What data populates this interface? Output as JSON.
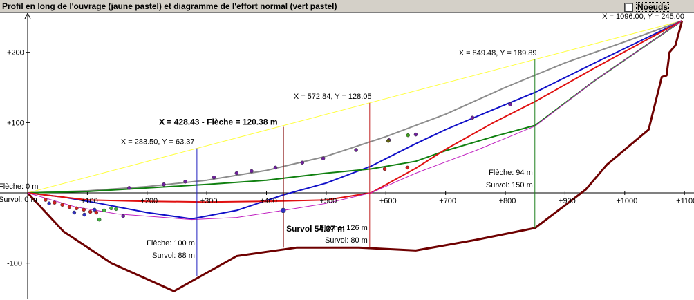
{
  "window": {
    "title": "Profil en long de l'ouvrage (jaune pastel) et diagramme de l'effort normal (vert pastel)",
    "noeuds_label": "Noeuds",
    "noeuds_checked": false
  },
  "chart_data": {
    "type": "line",
    "xlim": [
      -10,
      1100
    ],
    "ylim": [
      -140,
      245
    ],
    "x_ticks": [
      {
        "v": 100,
        "label": "+100"
      },
      {
        "v": 200,
        "label": "+200"
      },
      {
        "v": 300,
        "label": "+300"
      },
      {
        "v": 400,
        "label": "+400"
      },
      {
        "v": 500,
        "label": "+500"
      },
      {
        "v": 600,
        "label": "+600"
      },
      {
        "v": 700,
        "label": "+700"
      },
      {
        "v": 800,
        "label": "+800"
      },
      {
        "v": 900,
        "label": "+900"
      },
      {
        "v": 1000,
        "label": "+1000"
      },
      {
        "v": 1100,
        "label": "+1100"
      }
    ],
    "y_ticks": [
      {
        "v": 200,
        "label": "+200"
      },
      {
        "v": 100,
        "label": "+100"
      },
      {
        "v": -100,
        "label": "-100"
      }
    ],
    "axis_labels": {
      "fleche0": "Flèche: 0 m",
      "survol0": "Survol: 0 m"
    },
    "top_label": "X = 1096.00, Y = 245.00",
    "series": [
      {
        "key": "chord",
        "color": "#ffff40",
        "width": 1,
        "points": [
          [
            0,
            0
          ],
          [
            1096,
            245
          ]
        ]
      },
      {
        "key": "terrain",
        "color": "#6e0000",
        "width": 3,
        "points": [
          [
            0,
            0
          ],
          [
            60,
            -55
          ],
          [
            140,
            -100
          ],
          [
            245,
            -140
          ],
          [
            350,
            -90
          ],
          [
            450,
            -78
          ],
          [
            555,
            -78
          ],
          [
            650,
            -82
          ],
          [
            750,
            -67
          ],
          [
            850,
            -50
          ],
          [
            935,
            5
          ],
          [
            970,
            40
          ],
          [
            1040,
            90
          ],
          [
            1062,
            165
          ],
          [
            1070,
            167
          ],
          [
            1075,
            200
          ],
          [
            1085,
            210
          ],
          [
            1096,
            245
          ]
        ]
      },
      {
        "key": "grey",
        "color": "#8c8c8c",
        "width": 2,
        "points": [
          [
            0,
            0
          ],
          [
            100,
            3
          ],
          [
            200,
            9
          ],
          [
            300,
            18
          ],
          [
            400,
            32
          ],
          [
            500,
            52
          ],
          [
            600,
            80
          ],
          [
            700,
            112
          ],
          [
            800,
            150
          ],
          [
            900,
            185
          ],
          [
            1000,
            215
          ],
          [
            1096,
            245
          ]
        ]
      },
      {
        "key": "blue",
        "color": "#1010c8",
        "width": 2,
        "points": [
          [
            0,
            0
          ],
          [
            60,
            -6
          ],
          [
            120,
            -15
          ],
          [
            200,
            -28
          ],
          [
            275,
            -37
          ],
          [
            350,
            -25
          ],
          [
            428,
            -3
          ],
          [
            500,
            14
          ],
          [
            575,
            38
          ],
          [
            650,
            70
          ],
          [
            700,
            90
          ],
          [
            770,
            115
          ],
          [
            850,
            143
          ],
          [
            950,
            185
          ],
          [
            1096,
            245
          ]
        ]
      },
      {
        "key": "green",
        "color": "#108010",
        "width": 2,
        "points": [
          [
            0,
            0
          ],
          [
            100,
            2
          ],
          [
            200,
            7
          ],
          [
            300,
            12
          ],
          [
            400,
            18
          ],
          [
            500,
            28
          ],
          [
            575,
            34
          ],
          [
            650,
            45
          ],
          [
            700,
            60
          ],
          [
            780,
            80
          ],
          [
            850,
            96
          ],
          [
            950,
            160
          ],
          [
            1096,
            245
          ]
        ]
      },
      {
        "key": "red",
        "color": "#e01010",
        "width": 2,
        "points": [
          [
            0,
            0
          ],
          [
            100,
            -10
          ],
          [
            200,
            -12
          ],
          [
            300,
            -13
          ],
          [
            400,
            -12
          ],
          [
            500,
            -10
          ],
          [
            575,
            0
          ],
          [
            650,
            35
          ],
          [
            700,
            62
          ],
          [
            780,
            100
          ],
          [
            850,
            130
          ],
          [
            950,
            178
          ],
          [
            1096,
            245
          ]
        ]
      },
      {
        "key": "magenta",
        "color": "#c020c0",
        "width": 1,
        "points": [
          [
            0,
            0
          ],
          [
            80,
            -20
          ],
          [
            150,
            -30
          ],
          [
            275,
            -38
          ],
          [
            350,
            -35
          ],
          [
            428,
            -25
          ],
          [
            500,
            -15
          ],
          [
            575,
            0
          ],
          [
            650,
            28
          ],
          [
            750,
            60
          ],
          [
            850,
            95
          ],
          [
            950,
            160
          ],
          [
            1096,
            245
          ]
        ]
      }
    ],
    "markers": [
      {
        "x": 170,
        "y": 7,
        "c": "#7020a0",
        "r": 2.5
      },
      {
        "x": 228,
        "y": 12,
        "c": "#7020a0",
        "r": 2.5
      },
      {
        "x": 264,
        "y": 16,
        "c": "#7020a0",
        "r": 2.5
      },
      {
        "x": 312,
        "y": 22,
        "c": "#7020a0",
        "r": 2.5
      },
      {
        "x": 350,
        "y": 28,
        "c": "#7020a0",
        "r": 2.5
      },
      {
        "x": 375,
        "y": 31,
        "c": "#7020a0",
        "r": 2.5
      },
      {
        "x": 415,
        "y": 36,
        "c": "#7020a0",
        "r": 2.5
      },
      {
        "x": 460,
        "y": 43,
        "c": "#7020a0",
        "r": 2.5
      },
      {
        "x": 495,
        "y": 49,
        "c": "#7020a0",
        "r": 2.5
      },
      {
        "x": 550,
        "y": 61,
        "c": "#7020a0",
        "r": 2.5
      },
      {
        "x": 605,
        "y": 75,
        "c": "#7020a0",
        "r": 2.5
      },
      {
        "x": 650,
        "y": 83,
        "c": "#7020a0",
        "r": 2.5
      },
      {
        "x": 745,
        "y": 107,
        "c": "#7020a0",
        "r": 2.5
      },
      {
        "x": 808,
        "y": 126,
        "c": "#7020a0",
        "r": 2.5
      },
      {
        "x": 637,
        "y": 82,
        "c": "#40a020",
        "r": 2.5
      },
      {
        "x": 604,
        "y": 74,
        "c": "#606010",
        "r": 2.5
      },
      {
        "x": 598,
        "y": 34,
        "c": "#d02020",
        "r": 2.5
      },
      {
        "x": 636,
        "y": 36,
        "c": "#d02020",
        "r": 2.5
      },
      {
        "x": 428,
        "y": -25,
        "c": "#3030c0",
        "r": 3.5
      },
      {
        "x": 30,
        "y": -10,
        "c": "#d02020",
        "r": 2.5
      },
      {
        "x": 45,
        "y": -14,
        "c": "#d02020",
        "r": 2.5
      },
      {
        "x": 58,
        "y": -17,
        "c": "#d02020",
        "r": 2.5
      },
      {
        "x": 70,
        "y": -20,
        "c": "#d02020",
        "r": 2.5
      },
      {
        "x": 82,
        "y": -22,
        "c": "#d02020",
        "r": 2.5
      },
      {
        "x": 94,
        "y": -24,
        "c": "#d02020",
        "r": 2.5
      },
      {
        "x": 105,
        "y": -27,
        "c": "#d02020",
        "r": 2.5
      },
      {
        "x": 115,
        "y": -28,
        "c": "#d02020",
        "r": 2.5
      },
      {
        "x": 36,
        "y": -15,
        "c": "#3030c0",
        "r": 2.5
      },
      {
        "x": 78,
        "y": -28,
        "c": "#3030c0",
        "r": 2.5
      },
      {
        "x": 95,
        "y": -31,
        "c": "#3030c0",
        "r": 2.5
      },
      {
        "x": 112,
        "y": -24,
        "c": "#3030c0",
        "r": 2.5
      },
      {
        "x": 128,
        "y": -25,
        "c": "#40b040",
        "r": 2.5
      },
      {
        "x": 140,
        "y": -22,
        "c": "#40b040",
        "r": 2.5
      },
      {
        "x": 148,
        "y": -23,
        "c": "#40b040",
        "r": 2.5
      },
      {
        "x": 120,
        "y": -38,
        "c": "#40b040",
        "r": 2.5
      },
      {
        "x": 160,
        "y": -33,
        "c": "#7020a0",
        "r": 2.5
      }
    ],
    "verticals": [
      {
        "x": 283.5,
        "y_top": 63.37,
        "y_bot": -118,
        "color": "#2020c0",
        "label": "X = 283.50, Y = 63.37",
        "fleche": "Flèche: 100 m",
        "survol": "Survol: 88 m"
      },
      {
        "x": 428.43,
        "y_top": 94,
        "y_bot": -78,
        "color": "#800000",
        "label": "X = 428.43 - Flèche = 120.38 m",
        "fleche": "",
        "survol": "Survol 54.37 m"
      },
      {
        "x": 572.84,
        "y_top": 128.05,
        "y_bot": -78,
        "color": "#c02020",
        "label": "X = 572.84, Y = 128.05",
        "fleche": "Flèche: 126 m",
        "survol": "Survol: 80 m"
      },
      {
        "x": 849.48,
        "y_top": 189.89,
        "y_bot": -50,
        "color": "#208020",
        "label": "X = 849.48, Y = 189.89",
        "fleche": "Flèche: 94 m",
        "survol": "Survol: 150 m"
      }
    ]
  }
}
